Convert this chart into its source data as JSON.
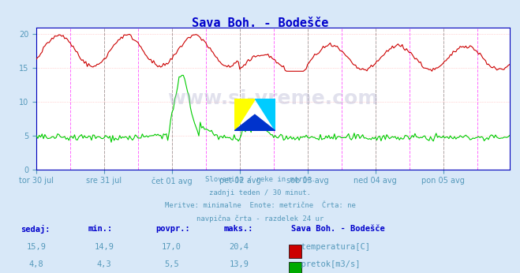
{
  "title": "Sava Boh. - Bodešče",
  "title_color": "#0000cc",
  "bg_color": "#d8e8f8",
  "plot_bg_color": "#ffffff",
  "grid_color": "#ffb0b0",
  "grid_linestyle": "dotted",
  "xlabel_color": "#5599bb",
  "text_color": "#5599bb",
  "x_labels": [
    "tor 30 jul",
    "sre 31 jul",
    "čet 01 avg",
    "pet 02 avg",
    "sob 03 avg",
    "ned 04 avg",
    "pon 05 avg"
  ],
  "x_ticks_pos": [
    0,
    48,
    96,
    144,
    192,
    240,
    288
  ],
  "total_points": 336,
  "ylim": [
    0,
    21
  ],
  "yticks": [
    0,
    5,
    10,
    15,
    20
  ],
  "vline_color_dashed": "#888888",
  "vline_color_pink": "#ff00ff",
  "bottom_text_lines": [
    "Slovenija / reke in morje.",
    "zadnji teden / 30 minut.",
    "Meritve: minimalne  Enote: metrične  Črta: ne",
    "navpična črta - razdelek 24 ur"
  ],
  "table_headers": [
    "sedaj:",
    "min.:",
    "povpr.:",
    "maks.:"
  ],
  "table_header_station": "Sava Boh. - Bodešče",
  "row1_values": [
    "15,9",
    "14,9",
    "17,0",
    "20,4"
  ],
  "row1_label": "temperatura[C]",
  "row1_color": "#cc0000",
  "row2_values": [
    "4,8",
    "4,3",
    "5,5",
    "13,9"
  ],
  "row2_label": "pretok[m3/s]",
  "row2_color": "#00aa00",
  "temp_color": "#cc0000",
  "flow_color": "#00cc00",
  "border_color": "#0000bb",
  "axis_color": "#0000cc",
  "watermark": "www.si-vreme.com"
}
